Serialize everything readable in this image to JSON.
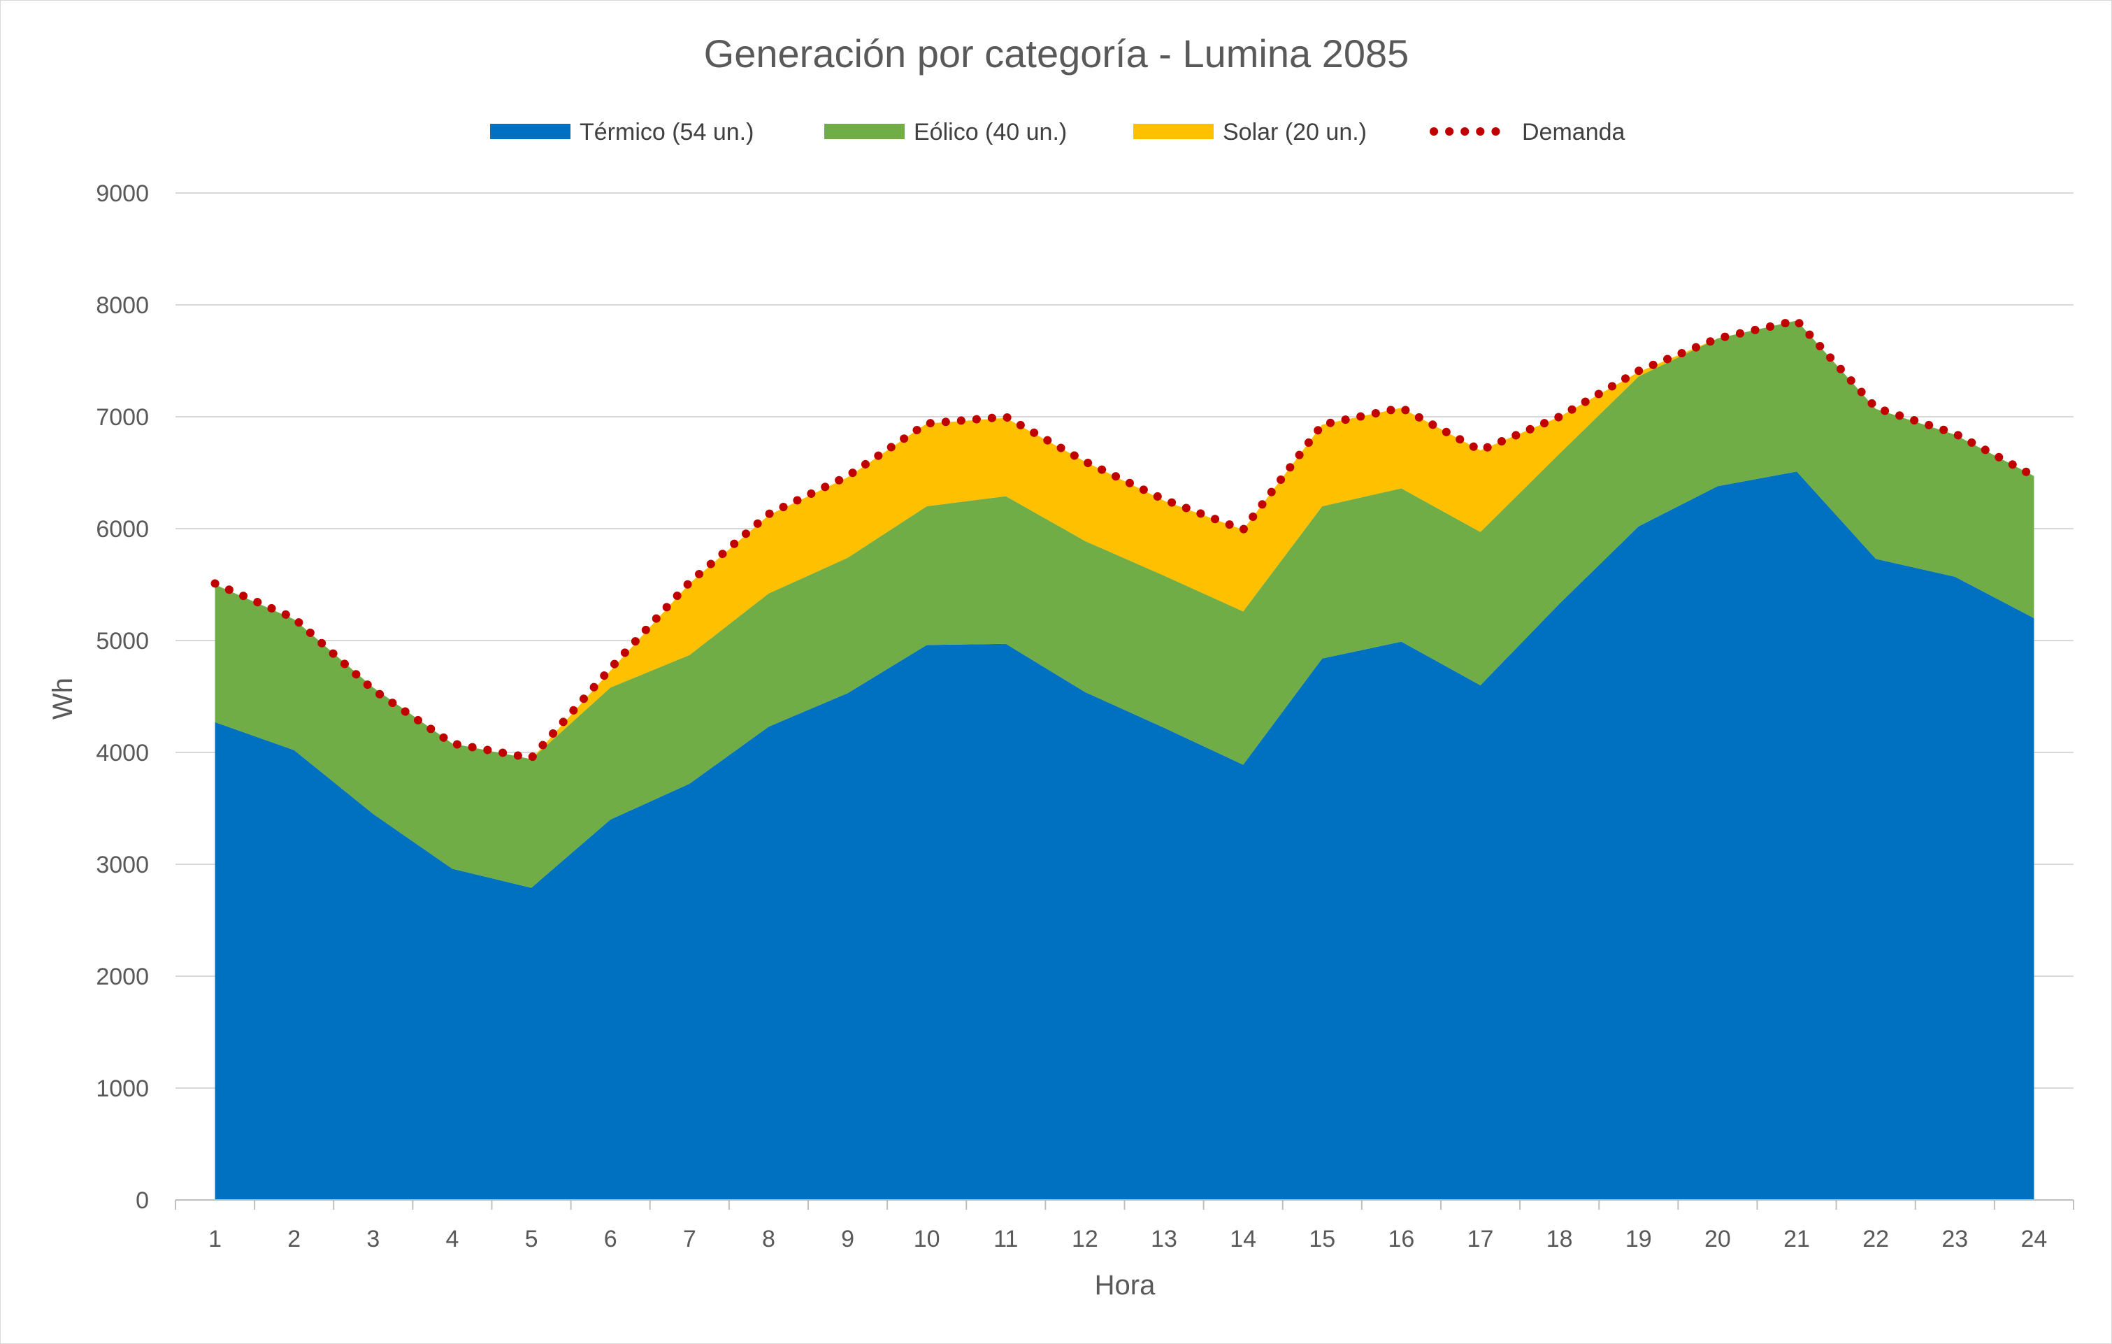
{
  "chart_data": {
    "type": "area",
    "stacked": true,
    "title": "Generación por categoría - Lumina 2085",
    "xlabel": "Hora",
    "ylabel": "Wh",
    "ylim": [
      0,
      9000
    ],
    "yticks": [
      "0",
      "1000",
      "2000",
      "3000",
      "4000",
      "5000",
      "6000",
      "7000",
      "8000",
      "9000"
    ],
    "categories": [
      "1",
      "2",
      "3",
      "4",
      "5",
      "6",
      "7",
      "8",
      "9",
      "10",
      "11",
      "12",
      "13",
      "14",
      "15",
      "16",
      "17",
      "18",
      "19",
      "20",
      "21",
      "22",
      "23",
      "24"
    ],
    "grid": true,
    "legend_position": "top",
    "series": [
      {
        "name": "Térmico (54 un.)",
        "kind": "area",
        "color": "#0070c0",
        "values": [
          4270,
          4020,
          3450,
          2960,
          2790,
          3400,
          3720,
          4230,
          4530,
          4960,
          4970,
          4540,
          4220,
          3890,
          4840,
          4990,
          4600,
          5330,
          6020,
          6380,
          6510,
          5730,
          5570,
          5200
        ]
      },
      {
        "name": "Eólico (40 un.)",
        "kind": "area",
        "color": "#70ad47",
        "values": [
          1230,
          1170,
          1130,
          1120,
          1150,
          1180,
          1150,
          1190,
          1210,
          1240,
          1320,
          1350,
          1360,
          1370,
          1360,
          1370,
          1370,
          1340,
          1340,
          1320,
          1350,
          1340,
          1270,
          1270
        ]
      },
      {
        "name": "Solar (20 un.)",
        "kind": "area",
        "color": "#ffc000",
        "values": [
          0,
          0,
          0,
          0,
          0,
          150,
          640,
          700,
          720,
          740,
          700,
          710,
          670,
          730,
          730,
          720,
          730,
          330,
          40,
          0,
          0,
          0,
          0,
          0
        ]
      },
      {
        "name": "Demanda",
        "kind": "line-dotted",
        "color": "#c00000",
        "values": [
          5510,
          5200,
          4560,
          4080,
          3950,
          4750,
          5520,
          6130,
          6470,
          6940,
          7000,
          6600,
          6260,
          5990,
          6930,
          7080,
          6700,
          7000,
          7410,
          7700,
          7860,
          7080,
          6850,
          6470
        ]
      }
    ]
  }
}
